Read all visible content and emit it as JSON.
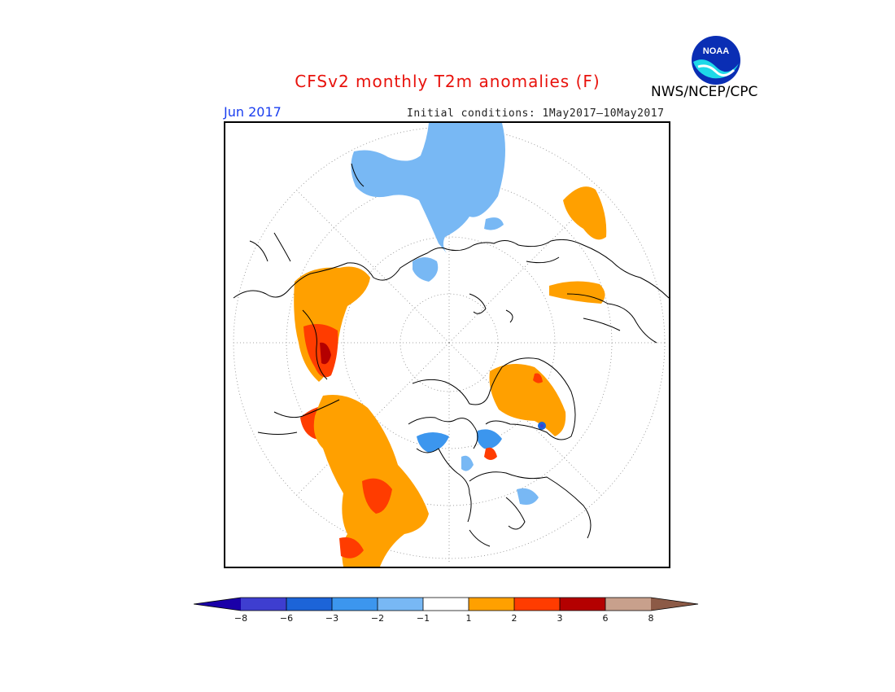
{
  "header": {
    "title": "CFSv2 monthly T2m anomalies (F)",
    "month": "Jun 2017",
    "initial_conditions": "Initial conditions: 1May2017–10May2017",
    "agency": "NWS/NCEP/CPC",
    "logo_text": "NOAA"
  },
  "legend": {
    "labels": [
      "−8",
      "−6",
      "−3",
      "−2",
      "−1",
      "1",
      "2",
      "3",
      "6",
      "8"
    ],
    "colors": {
      "below_min": "#1a00a8",
      "bins": [
        "#3e3ed0",
        "#1c64d8",
        "#3c96ee",
        "#78b8f4",
        "#ffffff",
        "#ffa000",
        "#ff3c00",
        "#b40000",
        "#c8a08c"
      ],
      "above_max": "#8c5a46"
    }
  },
  "map": {
    "projection": "north-polar-stereographic",
    "anomaly_regions": [
      {
        "name": "eastern-siberia-cold",
        "color": "#78b8f4"
      },
      {
        "name": "alaska-warm",
        "color": "#ffa000"
      },
      {
        "name": "alaska-hot",
        "color": "#ff3c00"
      },
      {
        "name": "western-north-america-warm",
        "color": "#ffa000"
      },
      {
        "name": "canada-hot",
        "color": "#ff3c00"
      },
      {
        "name": "greenland-warm",
        "color": "#ffa000"
      },
      {
        "name": "central-asia-warm",
        "color": "#ffa000"
      },
      {
        "name": "hudson-bay-cold",
        "color": "#3c96ee"
      }
    ]
  }
}
